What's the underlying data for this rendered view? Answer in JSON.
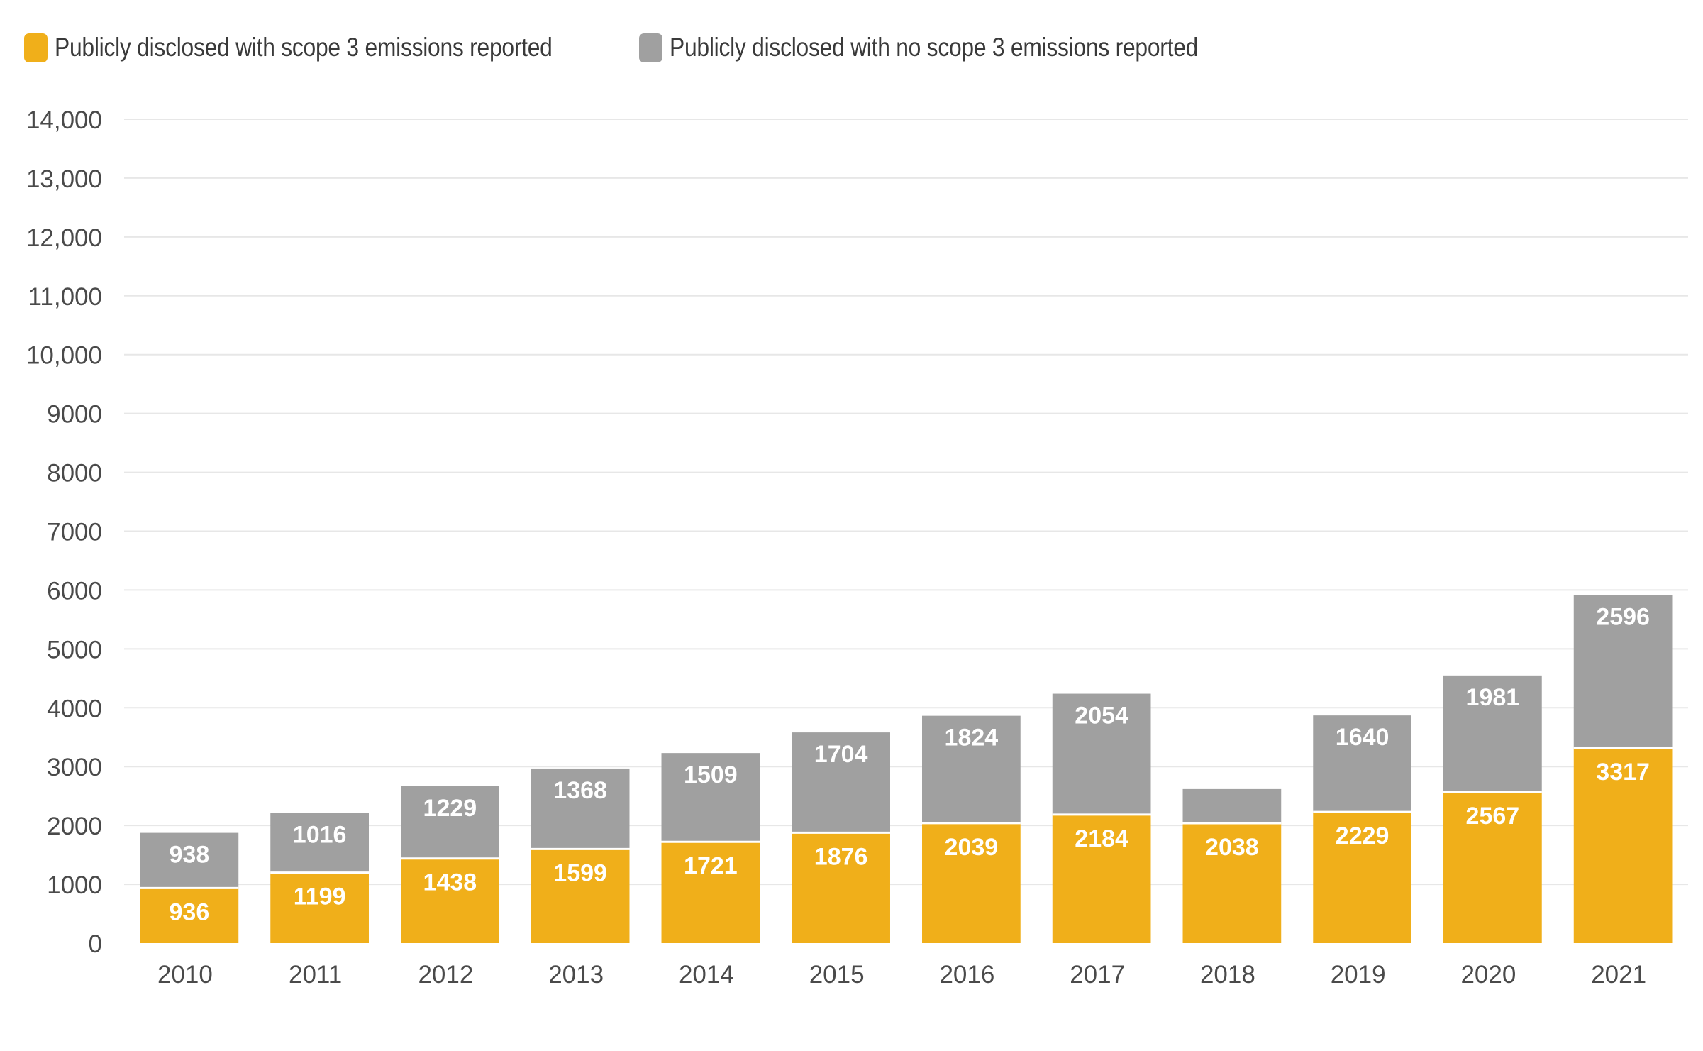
{
  "chart_data": {
    "type": "bar",
    "stacked": true,
    "title": "",
    "xlabel": "",
    "ylabel": "",
    "categories": [
      "2010",
      "2011",
      "2012",
      "2013",
      "2014",
      "2015",
      "2016",
      "2017",
      "2018",
      "2019",
      "2020",
      "2021"
    ],
    "series": [
      {
        "name": "Publicly disclosed with scope 3 emissions reported",
        "color": "#F0AF1A",
        "values": [
          936,
          1199,
          1438,
          1599,
          1721,
          1876,
          2039,
          2184,
          2038,
          2229,
          2567,
          3317
        ],
        "labels": [
          "936",
          "1199",
          "1438",
          "1599",
          "1721",
          "1876",
          "2039",
          "2184",
          "2038",
          "2229",
          "2567",
          "3317"
        ]
      },
      {
        "name": "Publicly disclosed with no scope 3 emissions reported",
        "color": "#A0A0A0",
        "values": [
          938,
          1016,
          1229,
          1368,
          1509,
          1704,
          1824,
          2054,
          580,
          1640,
          1981,
          2596
        ],
        "labels": [
          "938",
          "1016",
          "1229",
          "1368",
          "1509",
          "1704",
          "1824",
          "2054",
          "",
          "1640",
          "1981",
          "2596"
        ]
      }
    ],
    "ylim": [
      0,
      14000
    ],
    "yticks": [
      0,
      1000,
      2000,
      3000,
      4000,
      5000,
      6000,
      7000,
      8000,
      9000,
      10000,
      11000,
      12000,
      13000,
      14000
    ],
    "ytick_labels": [
      "0",
      "1000",
      "2000",
      "3000",
      "4000",
      "5000",
      "6000",
      "7000",
      "8000",
      "9000",
      "10,000",
      "11,000",
      "12,000",
      "13,000",
      "14,000"
    ],
    "grid": true,
    "legend_position": "top-left"
  }
}
